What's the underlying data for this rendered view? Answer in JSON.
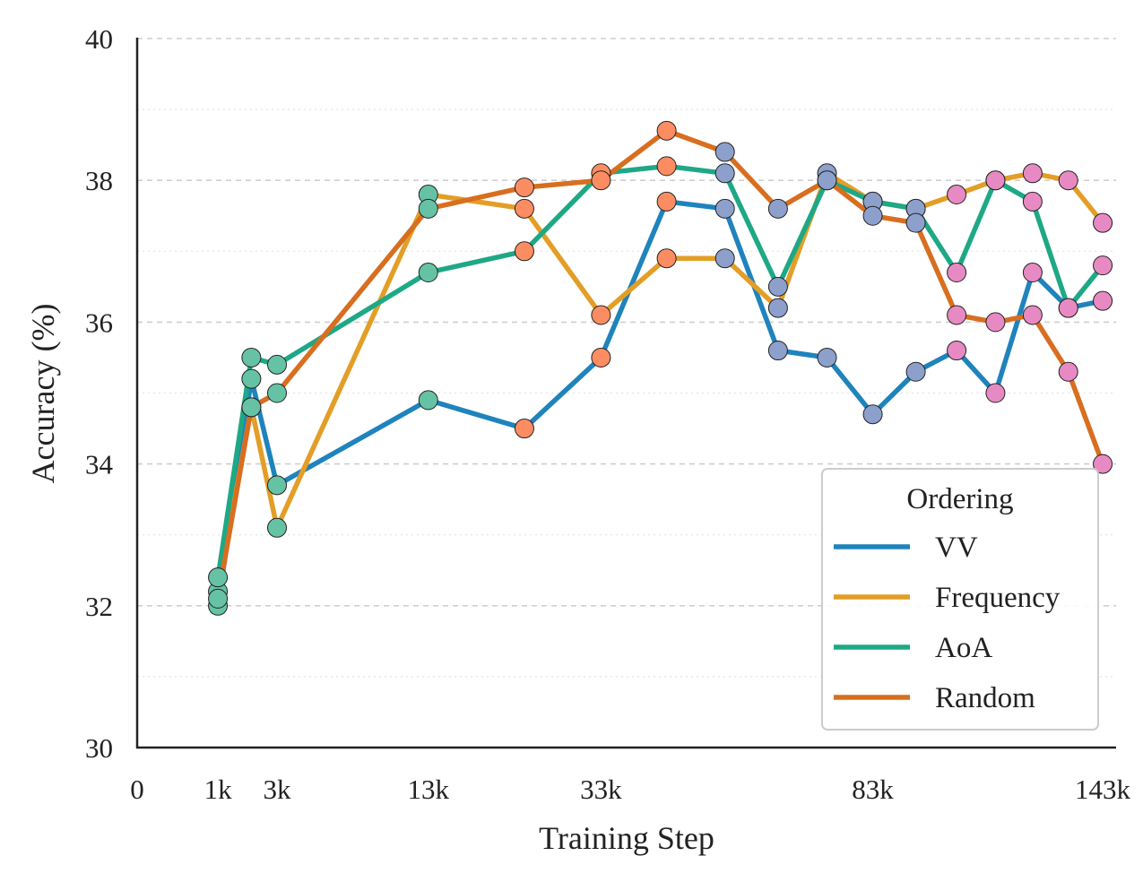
{
  "chart_data": {
    "type": "line",
    "title": "",
    "xlabel": "Training Step",
    "ylabel": "Accuracy (%)",
    "ylim": [
      30,
      40
    ],
    "yticks": [
      30,
      32,
      34,
      36,
      38,
      40
    ],
    "xticks": [
      {
        "value": 0,
        "label": "0"
      },
      {
        "value": 1000,
        "label": "1k"
      },
      {
        "value": 3000,
        "label": "3k"
      },
      {
        "value": 13000,
        "label": "13k"
      },
      {
        "value": 33000,
        "label": "33k"
      },
      {
        "value": 83000,
        "label": "83k"
      },
      {
        "value": 143000,
        "label": "143k"
      }
    ],
    "x_scale": "sqrt",
    "grid": true,
    "legend": {
      "title": "Ordering",
      "position": "lower-right"
    },
    "x": [
      1000,
      2000,
      3000,
      13000,
      23000,
      33000,
      43000,
      53000,
      63000,
      73000,
      83000,
      93000,
      103000,
      113000,
      123000,
      133000,
      143000
    ],
    "series": [
      {
        "name": "VV",
        "color": "#1f83bc",
        "values": [
          32.0,
          35.2,
          33.7,
          34.9,
          34.5,
          35.5,
          37.7,
          37.6,
          35.6,
          35.5,
          34.7,
          35.3,
          35.6,
          35.0,
          36.7,
          36.2,
          36.3
        ]
      },
      {
        "name": "Frequency",
        "color": "#e39e27",
        "values": [
          32.2,
          34.8,
          33.1,
          37.8,
          37.6,
          36.1,
          36.9,
          36.9,
          36.2,
          38.1,
          37.7,
          37.6,
          37.8,
          38.0,
          38.1,
          38.0,
          37.4
        ]
      },
      {
        "name": "AoA",
        "color": "#1ea885",
        "values": [
          32.4,
          35.5,
          35.4,
          36.7,
          37.0,
          38.1,
          38.2,
          38.1,
          36.5,
          38.0,
          37.7,
          37.6,
          36.7,
          38.0,
          37.7,
          36.2,
          36.8
        ]
      },
      {
        "name": "Random",
        "color": "#d86e1f",
        "values": [
          32.1,
          34.8,
          35.0,
          37.6,
          37.9,
          38.0,
          38.7,
          38.4,
          37.6,
          38.0,
          37.5,
          37.4,
          36.1,
          36.0,
          36.1,
          35.3,
          34.0
        ]
      }
    ],
    "marker_colors": [
      "#66c2a5",
      "#66c2a5",
      "#66c2a5",
      "#66c2a5",
      "#fc8d62",
      "#fc8d62",
      "#fc8d62",
      "#8da0cb",
      "#8da0cb",
      "#8da0cb",
      "#8da0cb",
      "#8da0cb",
      "#e78ac3",
      "#e78ac3",
      "#e78ac3",
      "#e78ac3",
      "#e78ac3"
    ]
  }
}
